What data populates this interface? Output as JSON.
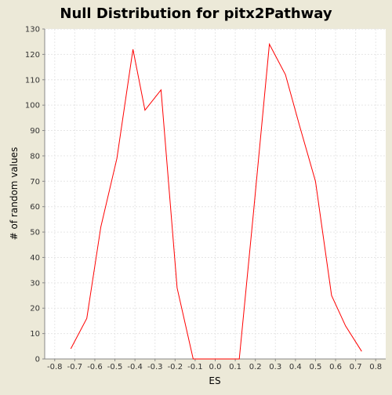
{
  "chart_data": {
    "type": "line",
    "title": "Null Distribution for pitx2Pathway",
    "xlabel": "ES",
    "ylabel": "# of random values",
    "xlim": [
      -0.85,
      0.85
    ],
    "ylim": [
      0,
      130
    ],
    "x_ticks": [
      -0.8,
      -0.7,
      -0.6,
      -0.5,
      -0.4,
      -0.3,
      -0.2,
      -0.1,
      0.0,
      0.1,
      0.2,
      0.3,
      0.4,
      0.5,
      0.6,
      0.7,
      0.8
    ],
    "x_tick_labels": [
      "-0.8",
      "-0.7",
      "-0.6",
      "-0.5",
      "-0.4",
      "-0.3",
      "-0.2",
      "-0.1",
      "0.0",
      "0.1",
      "0.2",
      "0.3",
      "0.4",
      "0.5",
      "0.6",
      "0.7",
      "0.8"
    ],
    "y_ticks": [
      0,
      10,
      20,
      30,
      40,
      50,
      60,
      70,
      80,
      90,
      100,
      110,
      120,
      130
    ],
    "y_tick_labels": [
      "0",
      "10",
      "20",
      "30",
      "40",
      "50",
      "60",
      "70",
      "80",
      "90",
      "100",
      "110",
      "120",
      "130"
    ],
    "grid": true,
    "legend": false,
    "series": [
      {
        "color": "#ff0000",
        "x": [
          -0.72,
          -0.64,
          -0.57,
          -0.49,
          -0.41,
          -0.35,
          -0.27,
          -0.19,
          -0.11,
          -0.03,
          0.04,
          0.12,
          0.19,
          0.27,
          0.35,
          0.42,
          0.5,
          0.58,
          0.65,
          0.73
        ],
        "y": [
          4,
          16,
          52,
          79,
          122,
          98,
          106,
          28,
          0,
          0,
          0,
          0,
          57,
          124,
          112,
          92,
          70,
          25,
          13,
          3
        ]
      }
    ]
  },
  "colors": {
    "page_background": "#ece9d8",
    "plot_background": "#ffffff",
    "gridline": "#e6e6e6",
    "axis": "#888888",
    "series_line": "#ff0000"
  }
}
